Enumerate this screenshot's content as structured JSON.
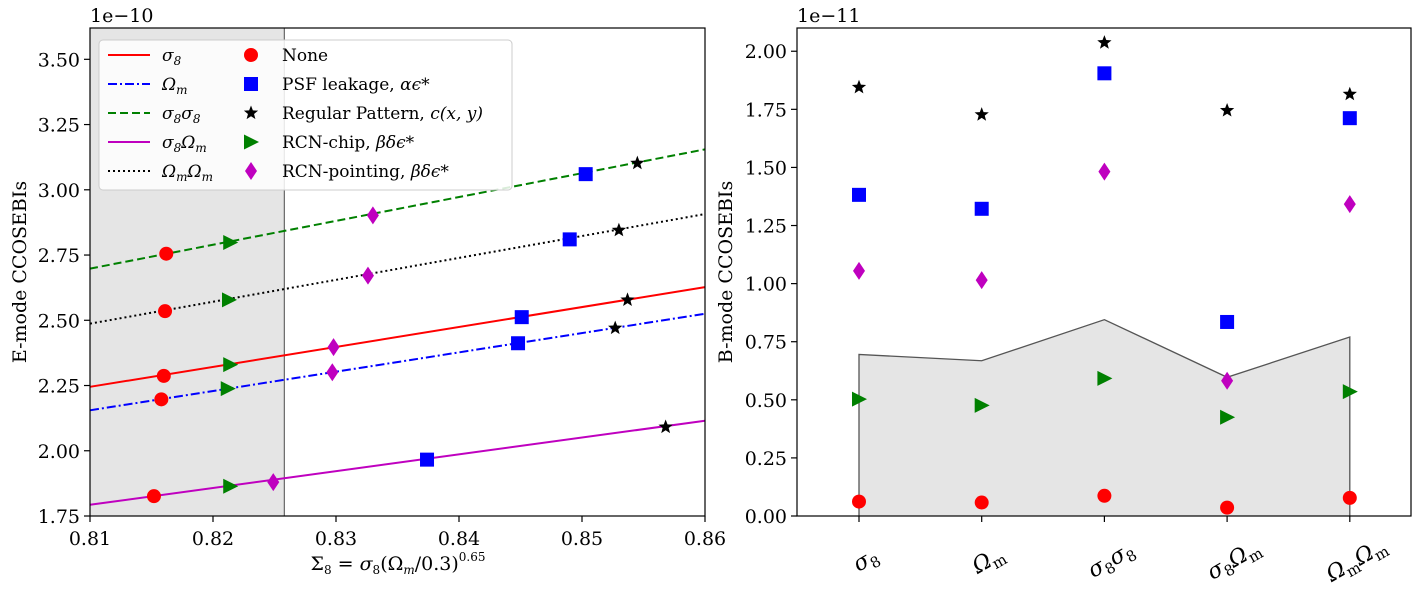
{
  "chart_data": [
    {
      "type": "line",
      "panel": "left",
      "xlabel_parts": {
        "base": "Σ",
        "sub": "8",
        "mid": " = σ",
        "sub2": "8",
        "paren": "(Ω",
        "sub3": "m",
        "tail": "/0.3)",
        "sup": "0.65"
      },
      "ylabel": "E-mode CCOSEBIs",
      "exponent": "1e−10",
      "xlim": [
        0.81,
        0.86
      ],
      "ylim": [
        1.75,
        3.62
      ],
      "xticks": [
        0.81,
        0.82,
        0.83,
        0.84,
        0.85,
        0.86
      ],
      "xtick_labels": [
        "0.81",
        "0.82",
        "0.83",
        "0.84",
        "0.85",
        "0.86"
      ],
      "yticks": [
        1.75,
        2.0,
        2.25,
        2.5,
        2.75,
        3.0,
        3.25,
        3.5
      ],
      "ytick_labels": [
        "1.75",
        "2.00",
        "2.25",
        "2.50",
        "2.75",
        "3.00",
        "3.25",
        "3.50"
      ],
      "shaded_region": [
        0.81,
        0.8258
      ],
      "lines": [
        {
          "key": "s8",
          "name": "σ8",
          "color": "#ff0000",
          "dash": "solid",
          "y0": 2.245,
          "y1": 2.627
        },
        {
          "key": "om",
          "name": "Ωm",
          "color": "#0000ff",
          "dash": "dashdot",
          "y0": 2.155,
          "y1": 2.525
        },
        {
          "key": "s8s8",
          "name": "σ8σ8",
          "color": "#008000",
          "dash": "dashed",
          "y0": 2.698,
          "y1": 3.155
        },
        {
          "key": "s8om",
          "name": "σ8Ωm",
          "color": "#bf00bf",
          "dash": "solid",
          "y0": 1.793,
          "y1": 2.115
        },
        {
          "key": "omom",
          "name": "ΩmΩm",
          "color": "#000000",
          "dash": "dotted",
          "y0": 2.487,
          "y1": 2.907
        }
      ],
      "points": [
        {
          "marker": "circle",
          "color": "#ff0000",
          "x": 0.8162,
          "y": 2.755
        },
        {
          "marker": "circle",
          "color": "#ff0000",
          "x": 0.8161,
          "y": 2.535
        },
        {
          "marker": "circle",
          "color": "#ff0000",
          "x": 0.816,
          "y": 2.287
        },
        {
          "marker": "circle",
          "color": "#ff0000",
          "x": 0.8158,
          "y": 2.197
        },
        {
          "marker": "circle",
          "color": "#ff0000",
          "x": 0.8152,
          "y": 1.826
        },
        {
          "marker": "triangle",
          "color": "#008000",
          "x": 0.8214,
          "y": 2.798
        },
        {
          "marker": "triangle",
          "color": "#008000",
          "x": 0.8213,
          "y": 2.578
        },
        {
          "marker": "triangle",
          "color": "#008000",
          "x": 0.8214,
          "y": 2.33
        },
        {
          "marker": "triangle",
          "color": "#008000",
          "x": 0.8212,
          "y": 2.238
        },
        {
          "marker": "triangle",
          "color": "#008000",
          "x": 0.8214,
          "y": 1.864
        },
        {
          "marker": "diamond",
          "color": "#bf00bf",
          "x": 0.833,
          "y": 2.902
        },
        {
          "marker": "diamond",
          "color": "#bf00bf",
          "x": 0.8326,
          "y": 2.671
        },
        {
          "marker": "diamond",
          "color": "#bf00bf",
          "x": 0.8298,
          "y": 2.397
        },
        {
          "marker": "diamond",
          "color": "#bf00bf",
          "x": 0.8297,
          "y": 2.301
        },
        {
          "marker": "diamond",
          "color": "#bf00bf",
          "x": 0.8249,
          "y": 1.88
        },
        {
          "marker": "square",
          "color": "#0000ff",
          "x": 0.8503,
          "y": 3.06
        },
        {
          "marker": "square",
          "color": "#0000ff",
          "x": 0.849,
          "y": 2.81
        },
        {
          "marker": "square",
          "color": "#0000ff",
          "x": 0.8451,
          "y": 2.512
        },
        {
          "marker": "square",
          "color": "#0000ff",
          "x": 0.8448,
          "y": 2.412
        },
        {
          "marker": "square",
          "color": "#0000ff",
          "x": 0.8374,
          "y": 1.966
        },
        {
          "marker": "star",
          "color": "#000000",
          "x": 0.8545,
          "y": 3.102
        },
        {
          "marker": "star",
          "color": "#000000",
          "x": 0.853,
          "y": 2.845
        },
        {
          "marker": "star",
          "color": "#000000",
          "x": 0.8537,
          "y": 2.578
        },
        {
          "marker": "star",
          "color": "#000000",
          "x": 0.8527,
          "y": 2.47
        },
        {
          "marker": "star",
          "color": "#000000",
          "x": 0.8568,
          "y": 2.091
        }
      ],
      "legend": {
        "placement": "upper-left",
        "line_entries": [
          {
            "label": "σ",
            "sub": "8",
            "color": "#ff0000",
            "dash": "solid"
          },
          {
            "label": "Ω",
            "sub": "m",
            "color": "#0000ff",
            "dash": "dashdot"
          },
          {
            "label": "σ",
            "sub": "8",
            "label2": "σ",
            "sub2": "8",
            "color": "#008000",
            "dash": "dashed"
          },
          {
            "label": "σ",
            "sub": "8",
            "label2": "Ω",
            "sub2": "m",
            "color": "#bf00bf",
            "dash": "solid"
          },
          {
            "label": "Ω",
            "sub": "m",
            "label2": "Ω",
            "sub2": "m",
            "color": "#000000",
            "dash": "dotted"
          }
        ],
        "marker_entries": [
          {
            "marker": "circle",
            "color": "#ff0000",
            "text": "None",
            "math": ""
          },
          {
            "marker": "square",
            "color": "#0000ff",
            "text": "PSF leakage, ",
            "math": "αϵ*"
          },
          {
            "marker": "star",
            "color": "#000000",
            "text": "Regular Pattern, ",
            "math": "c(x, y)"
          },
          {
            "marker": "triangle",
            "color": "#008000",
            "text": "RCN-chip, ",
            "math": "βδϵ*"
          },
          {
            "marker": "diamond",
            "color": "#bf00bf",
            "text": "RCN-pointing, ",
            "math": "βδϵ*"
          }
        ]
      }
    },
    {
      "type": "scatter",
      "panel": "right",
      "ylabel": "B-mode CCOSEBIs",
      "exponent": "1e−11",
      "ylim": [
        0.0,
        2.1
      ],
      "yticks": [
        0.0,
        0.25,
        0.5,
        0.75,
        1.0,
        1.25,
        1.5,
        1.75,
        2.0
      ],
      "ytick_labels": [
        "0.00",
        "0.25",
        "0.50",
        "0.75",
        "1.00",
        "1.25",
        "1.50",
        "1.75",
        "2.00"
      ],
      "categories": [
        {
          "a": "σ",
          "a_sub": "8",
          "b": "",
          "b_sub": ""
        },
        {
          "a": "Ω",
          "a_sub": "m",
          "b": "",
          "b_sub": ""
        },
        {
          "a": "σ",
          "a_sub": "8",
          "b": "σ",
          "b_sub": "8"
        },
        {
          "a": "σ",
          "a_sub": "8",
          "b": "Ω",
          "b_sub": "m"
        },
        {
          "a": "Ω",
          "a_sub": "m",
          "b": "Ω",
          "b_sub": "m"
        }
      ],
      "shaded_upper": [
        0.695,
        0.668,
        0.845,
        0.597,
        0.77
      ],
      "series": [
        {
          "marker": "circle",
          "color": "#ff0000",
          "values": [
            0.062,
            0.058,
            0.087,
            0.036,
            0.078
          ]
        },
        {
          "marker": "triangle",
          "color": "#008000",
          "values": [
            0.503,
            0.476,
            0.592,
            0.425,
            0.535
          ]
        },
        {
          "marker": "diamond",
          "color": "#bf00bf",
          "values": [
            1.055,
            1.015,
            1.482,
            0.582,
            1.342
          ]
        },
        {
          "marker": "square",
          "color": "#0000ff",
          "values": [
            1.382,
            1.322,
            1.905,
            0.835,
            1.712
          ]
        },
        {
          "marker": "star",
          "color": "#000000",
          "values": [
            1.845,
            1.727,
            2.037,
            1.745,
            1.815
          ]
        }
      ]
    }
  ]
}
